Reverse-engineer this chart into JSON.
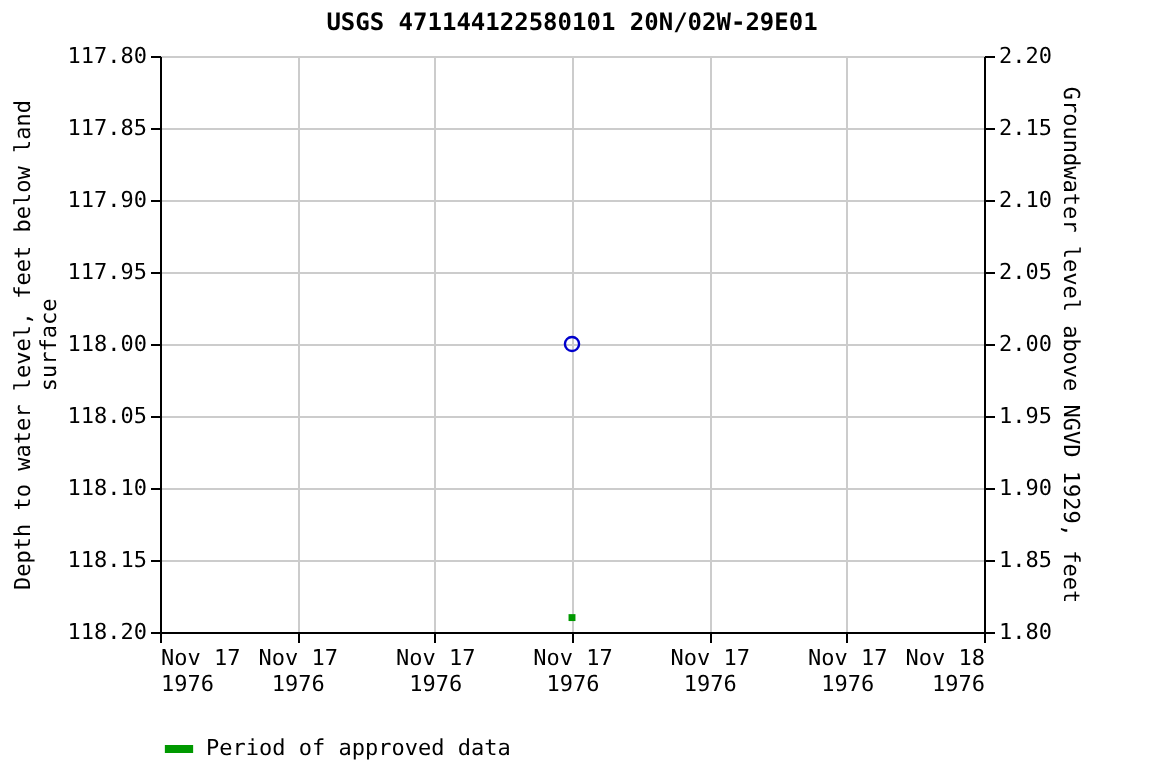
{
  "chart_data": {
    "type": "scatter",
    "title": "USGS 471144122580101 20N/02W-29E01",
    "ylabel": "Depth to water level, feet below land\nsurface",
    "y2label": "Groundwater level above NGVD 1929, feet",
    "xlim": [
      "1976-11-17T00:00",
      "1976-11-18T00:00"
    ],
    "xticks": [
      {
        "value": "1976-11-17T00:00",
        "label": "Nov 17\n1976"
      },
      {
        "value": "1976-11-17T04:00",
        "label": "Nov 17\n1976"
      },
      {
        "value": "1976-11-17T08:00",
        "label": "Nov 17\n1976"
      },
      {
        "value": "1976-11-17T12:00",
        "label": "Nov 17\n1976"
      },
      {
        "value": "1976-11-17T16:00",
        "label": "Nov 17\n1976"
      },
      {
        "value": "1976-11-17T20:00",
        "label": "Nov 17\n1976"
      },
      {
        "value": "1976-11-18T00:00",
        "label": "Nov 18\n1976"
      }
    ],
    "ylim": [
      118.2,
      117.8
    ],
    "yticks": [
      {
        "value": 117.8,
        "label": "117.80"
      },
      117.85,
      {
        "value": 117.9,
        "label": "117.90"
      },
      117.95,
      {
        "value": 118.0,
        "label": "118.00"
      },
      118.05,
      {
        "value": 118.1,
        "label": "118.10"
      },
      118.15,
      {
        "value": 118.2,
        "label": "118.20"
      }
    ],
    "y2lim": [
      1.8,
      2.2
    ],
    "y2ticks": [
      {
        "value": 1.8,
        "label": "1.80"
      },
      1.85,
      {
        "value": 1.9,
        "label": "1.90"
      },
      1.95,
      {
        "value": 2.0,
        "label": "2.00"
      },
      2.05,
      {
        "value": 2.1,
        "label": "2.10"
      },
      2.15,
      {
        "value": 2.2,
        "label": "2.20"
      }
    ],
    "grid": true,
    "legend": "bottom",
    "series": [
      {
        "color": "#0000cc",
        "marker": "circle",
        "x": [
          "1976-11-17T12:00"
        ],
        "values": [
          118.0
        ]
      },
      {
        "name": "Period of approved data",
        "color": "#009900",
        "marker": "square",
        "x": [
          "1976-11-17T12:00"
        ],
        "values": [
          118.19
        ]
      }
    ]
  }
}
